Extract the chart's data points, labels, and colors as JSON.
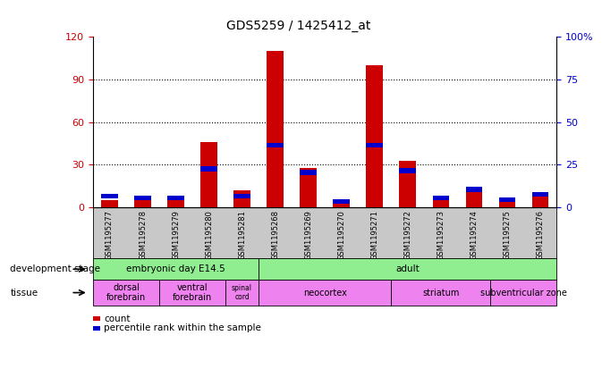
{
  "title": "GDS5259 / 1425412_at",
  "samples": [
    "GSM1195277",
    "GSM1195278",
    "GSM1195279",
    "GSM1195280",
    "GSM1195281",
    "GSM1195268",
    "GSM1195269",
    "GSM1195270",
    "GSM1195271",
    "GSM1195272",
    "GSM1195273",
    "GSM1195274",
    "GSM1195275",
    "GSM1195276"
  ],
  "count_values": [
    5,
    8,
    7,
    46,
    12,
    110,
    28,
    4,
    100,
    33,
    5,
    12,
    4,
    9
  ],
  "percentile_values": [
    8,
    7,
    7,
    24,
    8,
    38,
    22,
    5,
    38,
    23,
    7,
    12,
    6,
    9
  ],
  "ylim_left": [
    0,
    120
  ],
  "ylim_right": [
    0,
    100
  ],
  "yticks_left": [
    0,
    30,
    60,
    90,
    120
  ],
  "yticks_right": [
    0,
    25,
    50,
    75,
    100
  ],
  "ytick_labels_right": [
    "0",
    "25",
    "50",
    "75",
    "100%"
  ],
  "count_color": "#cc0000",
  "percentile_color": "#0000cc",
  "dev_stages": [
    {
      "label": "embryonic day E14.5",
      "start": 0,
      "end": 5
    },
    {
      "label": "adult",
      "start": 5,
      "end": 14
    }
  ],
  "tissues": [
    {
      "label": "dorsal\nforebrain",
      "start": 0,
      "end": 2
    },
    {
      "label": "ventral\nforebrain",
      "start": 2,
      "end": 4
    },
    {
      "label": "spinal\ncord",
      "start": 4,
      "end": 5
    },
    {
      "label": "neocortex",
      "start": 5,
      "end": 9
    },
    {
      "label": "striatum",
      "start": 9,
      "end": 12
    },
    {
      "label": "subventricular zone",
      "start": 12,
      "end": 14
    }
  ],
  "legend_count_label": "count",
  "legend_percentile_label": "percentile rank within the sample",
  "dev_stage_label": "development stage",
  "tissue_label": "tissue",
  "dev_stage_bg": "#90ee90",
  "tissue_bg": "#ee82ee",
  "tick_bg": "#c8c8c8"
}
